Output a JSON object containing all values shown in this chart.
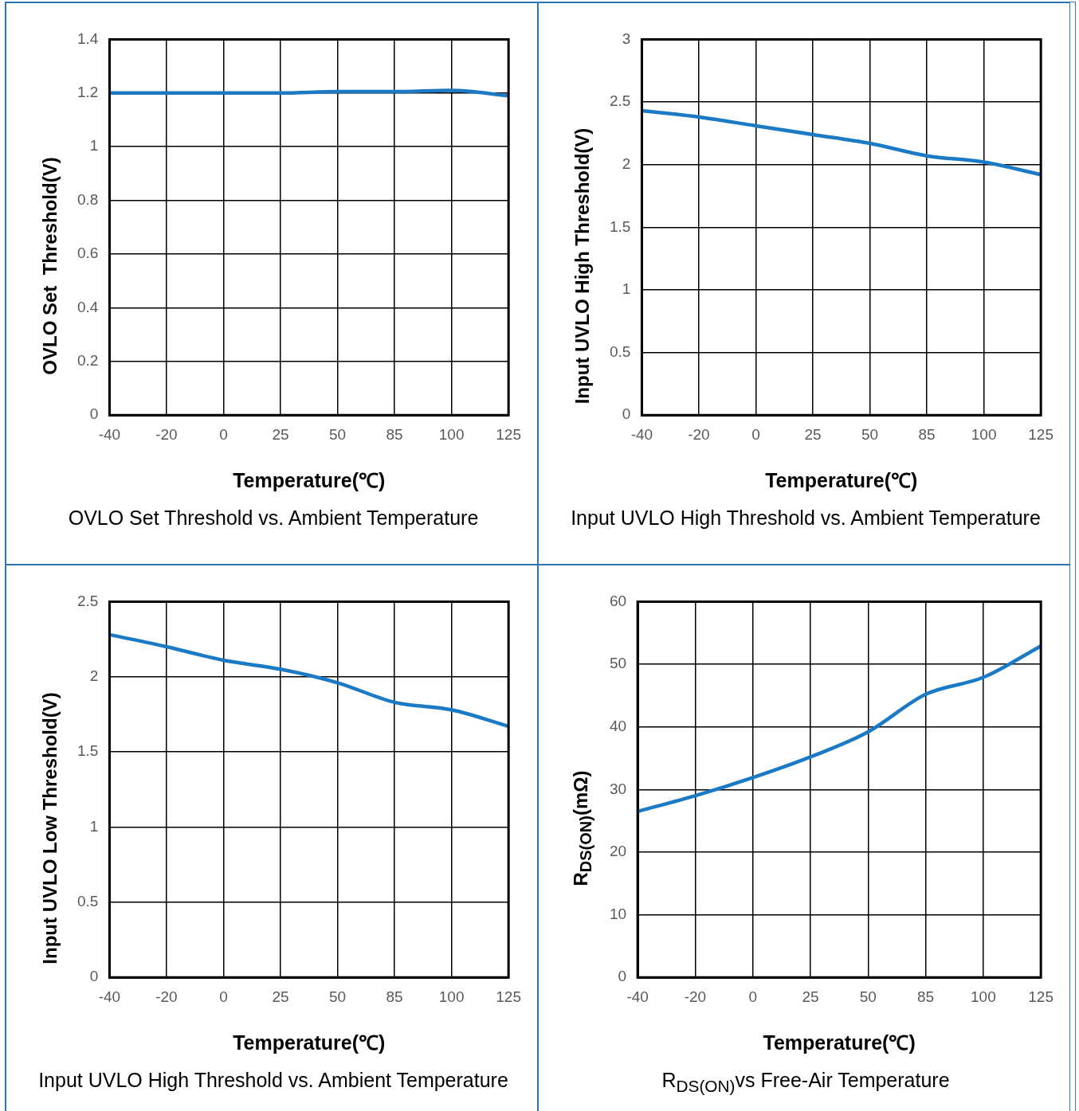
{
  "chart_data": [
    {
      "type": "line",
      "title": "OVLO Set Threshold vs. Ambient Temperature",
      "xlabel": "Temperature(℃)",
      "ylabel": "OVLO Set  Threshold(V)",
      "categories": [
        "-40",
        "-20",
        "0",
        "25",
        "50",
        "85",
        "100",
        "125"
      ],
      "series": [
        {
          "color": "#1b7ac6",
          "values": [
            1.2,
            1.2,
            1.2,
            1.2,
            1.205,
            1.205,
            1.21,
            1.19
          ]
        }
      ],
      "ylim": [
        0,
        1.4
      ],
      "yticks": [
        0,
        0.2,
        0.4,
        0.6,
        0.8,
        1,
        1.2,
        1.4
      ],
      "grid": true,
      "marker": "none"
    },
    {
      "type": "line",
      "title": "Input UVLO High Threshold vs. Ambient Temperature",
      "xlabel": "Temperature(℃)",
      "ylabel": "Input UVLO High Threshold(V)",
      "categories": [
        "-40",
        "-20",
        "0",
        "25",
        "50",
        "85",
        "100",
        "125"
      ],
      "series": [
        {
          "color": "#1b7ac6",
          "values": [
            2.43,
            2.38,
            2.31,
            2.24,
            2.17,
            2.07,
            2.02,
            1.92
          ]
        }
      ],
      "ylim": [
        0,
        3
      ],
      "yticks": [
        0,
        0.5,
        1,
        1.5,
        2,
        2.5,
        3
      ],
      "grid": true,
      "marker": "none"
    },
    {
      "type": "line",
      "title": "Input UVLO High Threshold vs. Ambient Temperature",
      "xlabel": "Temperature(℃)",
      "ylabel": "Input UVLO Low Threshold(V)",
      "categories": [
        "-40",
        "-20",
        "0",
        "25",
        "50",
        "85",
        "100",
        "125"
      ],
      "series": [
        {
          "color": "#1b7ac6",
          "values": [
            2.28,
            2.2,
            2.11,
            2.05,
            1.96,
            1.83,
            1.78,
            1.67
          ]
        }
      ],
      "ylim": [
        0,
        2.5
      ],
      "yticks": [
        0,
        0.5,
        1,
        1.5,
        2,
        2.5
      ],
      "grid": true,
      "marker": "none"
    },
    {
      "type": "line",
      "title": "R$_{DS(ON)}$vs Free-Air Temperature",
      "xlabel": "Temperature(℃)",
      "ylabel": "R$_{DS(ON)}$(mΩ)",
      "categories": [
        "-40",
        "-20",
        "0",
        "25",
        "50",
        "85",
        "100",
        "125"
      ],
      "series": [
        {
          "color": "#1b7ac6",
          "values": [
            26.5,
            29,
            31.9,
            35.2,
            39.2,
            45.2,
            47.9,
            52.9
          ]
        }
      ],
      "ylim": [
        0,
        60
      ],
      "yticks": [
        0,
        10,
        20,
        30,
        40,
        50,
        60
      ],
      "grid": true,
      "marker": "none"
    }
  ]
}
